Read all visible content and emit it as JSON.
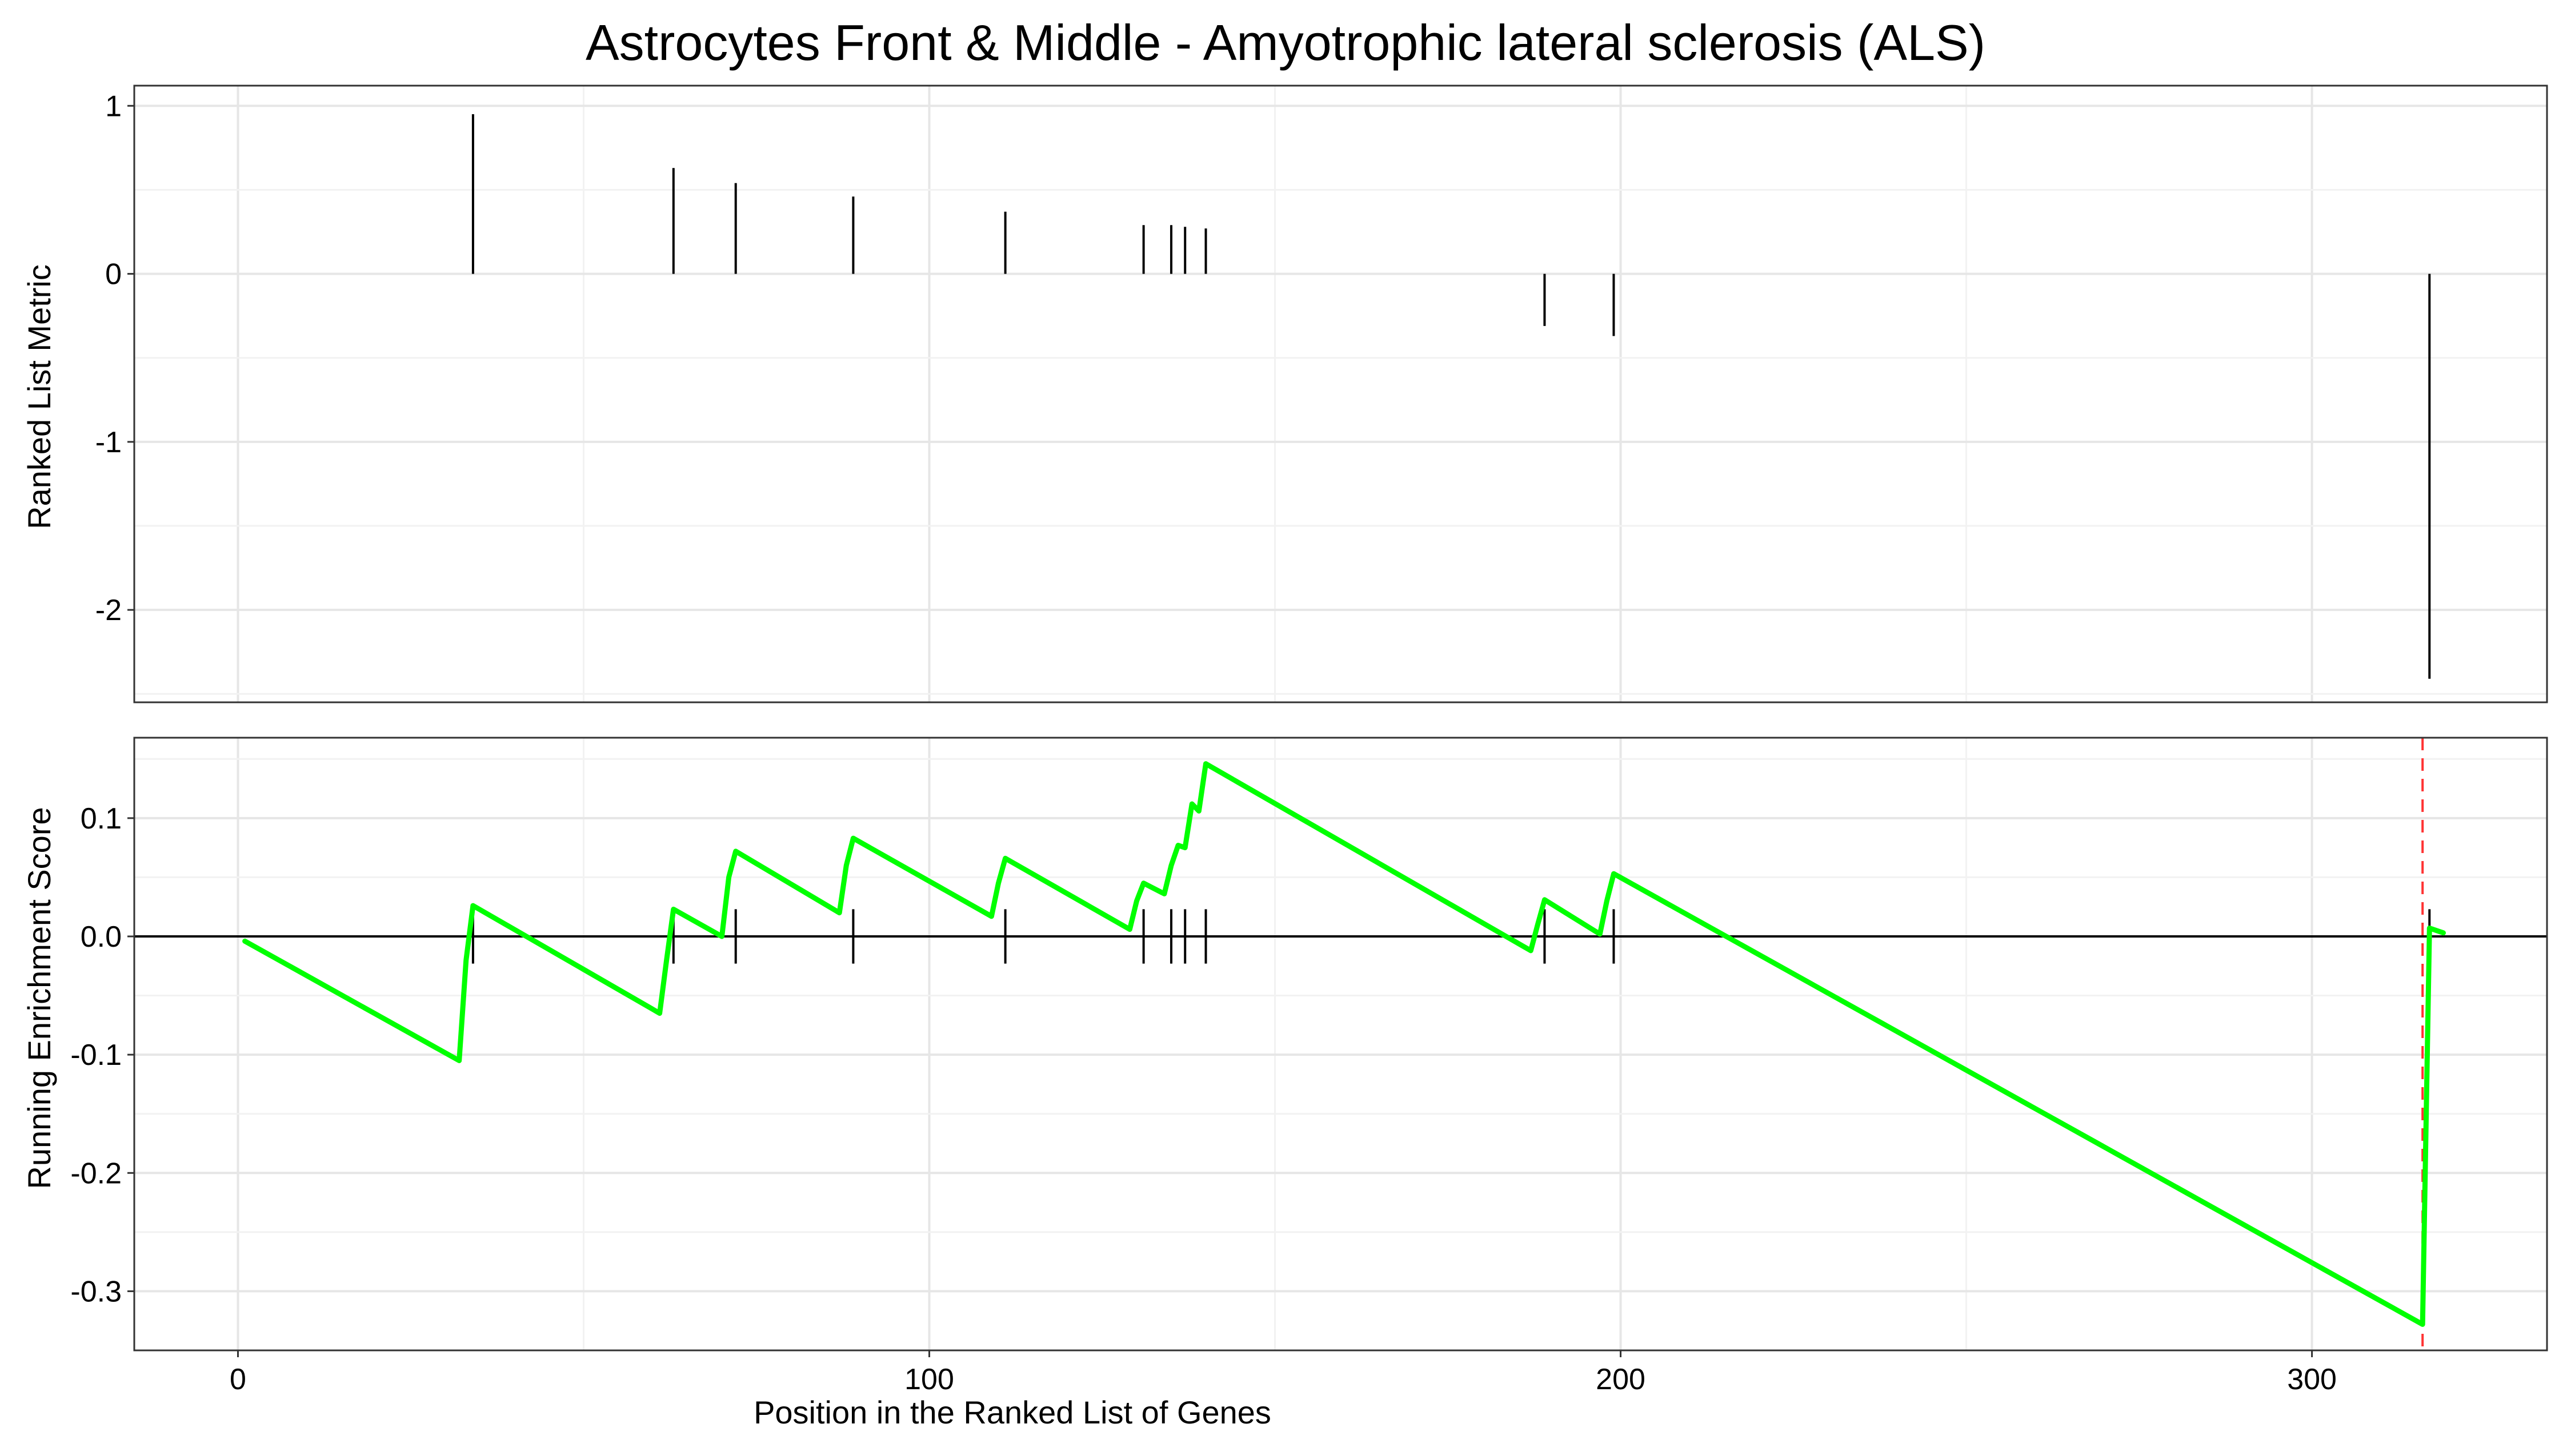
{
  "chart_data": [
    {
      "panel": "top",
      "type": "bar",
      "title": "Astrocytes Front & Middle - Amyotrophic lateral sclerosis (ALS)",
      "xlabel": "",
      "ylabel": "Ranked List Metric",
      "xlim": [
        -15,
        334
      ],
      "ylim": [
        -2.55,
        1.12
      ],
      "yticks": [
        1,
        0,
        -1,
        -2
      ],
      "ytick_labels": [
        "1",
        "0",
        "-1",
        "-2"
      ],
      "grid": true,
      "x": [
        34,
        63,
        72,
        89,
        111,
        131,
        135,
        137,
        140,
        189,
        199,
        317
      ],
      "values": [
        0.95,
        0.63,
        0.54,
        0.46,
        0.37,
        0.29,
        0.29,
        0.28,
        0.27,
        -0.31,
        -0.37,
        -2.41
      ]
    },
    {
      "panel": "bottom",
      "type": "line",
      "xlabel": "Position in the Ranked List of Genes",
      "ylabel": "Running Enrichment Score",
      "xlim": [
        -15,
        334
      ],
      "ylim": [
        -0.35,
        0.168
      ],
      "xticks": [
        0,
        100,
        200,
        300
      ],
      "xtick_labels": [
        "0",
        "100",
        "200",
        "300"
      ],
      "yticks": [
        0.1,
        0.0,
        -0.1,
        -0.2,
        -0.3
      ],
      "ytick_labels": [
        "0.1",
        "0.0",
        "-0.1",
        "-0.2",
        "-0.3"
      ],
      "grid": true,
      "zero_line": 0,
      "max_deviation_x": 316,
      "line_color": "#00ff00",
      "marker_color": "#ff3333",
      "series": [
        {
          "x": [
            1,
            32,
            33,
            34,
            61,
            62,
            63,
            70,
            71,
            72,
            87,
            88,
            89,
            109,
            110,
            111,
            129,
            130,
            131,
            134,
            135,
            136,
            137,
            138,
            139,
            140,
            187,
            188,
            189,
            197,
            198,
            199,
            316,
            317,
            319
          ],
          "y": [
            -0.004,
            -0.105,
            -0.02,
            0.026,
            -0.065,
            -0.02,
            0.023,
            0.0,
            0.05,
            0.072,
            0.02,
            0.06,
            0.083,
            0.017,
            0.045,
            0.066,
            0.006,
            0.03,
            0.045,
            0.036,
            0.06,
            0.077,
            0.075,
            0.112,
            0.106,
            0.146,
            -0.012,
            0.01,
            0.031,
            0.002,
            0.03,
            0.053,
            -0.328,
            0.007,
            0.003
          ]
        }
      ],
      "hit_positions": [
        34,
        63,
        72,
        89,
        111,
        131,
        135,
        137,
        140,
        189,
        199,
        317
      ]
    }
  ]
}
